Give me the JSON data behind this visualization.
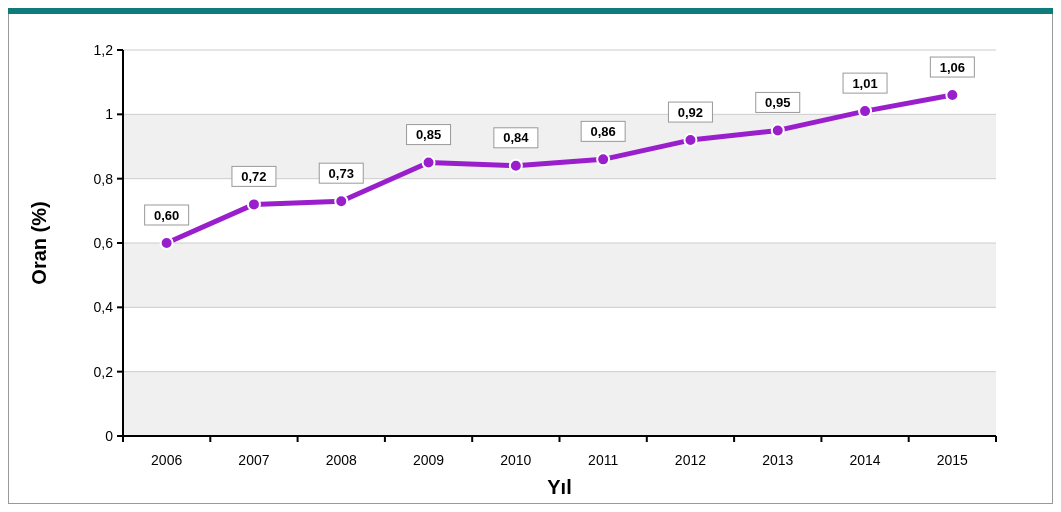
{
  "chart_data": {
    "type": "line",
    "xlabel": "Yıl",
    "ylabel": "Oran (%)",
    "categories": [
      "2006",
      "2007",
      "2008",
      "2009",
      "2010",
      "2011",
      "2012",
      "2013",
      "2014",
      "2015"
    ],
    "series": [
      {
        "color": "#9a1fcc",
        "values": [
          0.6,
          0.72,
          0.73,
          0.85,
          0.84,
          0.86,
          0.92,
          0.95,
          1.01,
          1.06
        ],
        "value_labels": [
          "0,60",
          "0,72",
          "0,73",
          "0,85",
          "0,84",
          "0,86",
          "0,92",
          "0,95",
          "1,01",
          "1,06"
        ]
      }
    ],
    "ylim": [
      0,
      1.2
    ],
    "yticks": [
      0,
      {
        "value": 0.2,
        "label": "0,2"
      },
      {
        "value": 0.4,
        "label": "0,4"
      },
      {
        "value": 0.6,
        "label": "0,6"
      },
      {
        "value": 0.8,
        "label": "0,8"
      },
      1,
      {
        "value": 1.2,
        "label": "1,2"
      }
    ],
    "grid": "y",
    "marker": "circle",
    "line_style": "solid"
  }
}
